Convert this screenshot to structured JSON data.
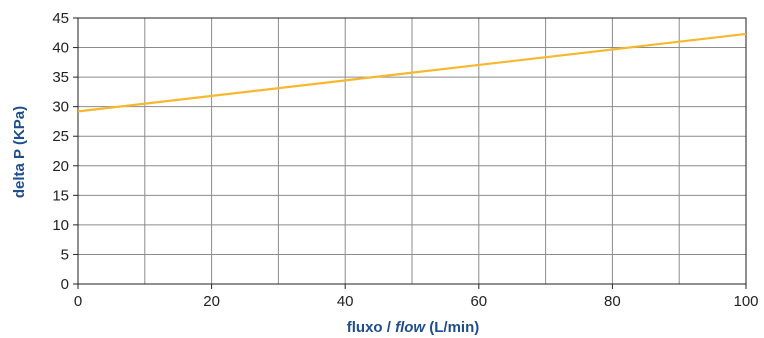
{
  "chart_data": {
    "type": "line",
    "xlabel_parts": [
      "fluxo / ",
      "flow",
      " (L/min)"
    ],
    "ylabel": "delta P (KPa)",
    "xlim": [
      0,
      100
    ],
    "ylim": [
      0,
      45
    ],
    "x_ticks": [
      0,
      20,
      40,
      60,
      80,
      100
    ],
    "x_gridlines": [
      0,
      10,
      20,
      30,
      40,
      50,
      60,
      70,
      80,
      90,
      100
    ],
    "y_ticks": [
      0,
      5,
      10,
      15,
      20,
      25,
      30,
      35,
      40,
      45
    ],
    "grid": true,
    "series": [
      {
        "color": "#f5b82e",
        "x": [
          0,
          100
        ],
        "y": [
          29.2,
          42.3
        ]
      }
    ]
  },
  "colors": {
    "axis_title": "#1f4e8c",
    "grid": "#8c8c8c",
    "axis": "#222222"
  }
}
